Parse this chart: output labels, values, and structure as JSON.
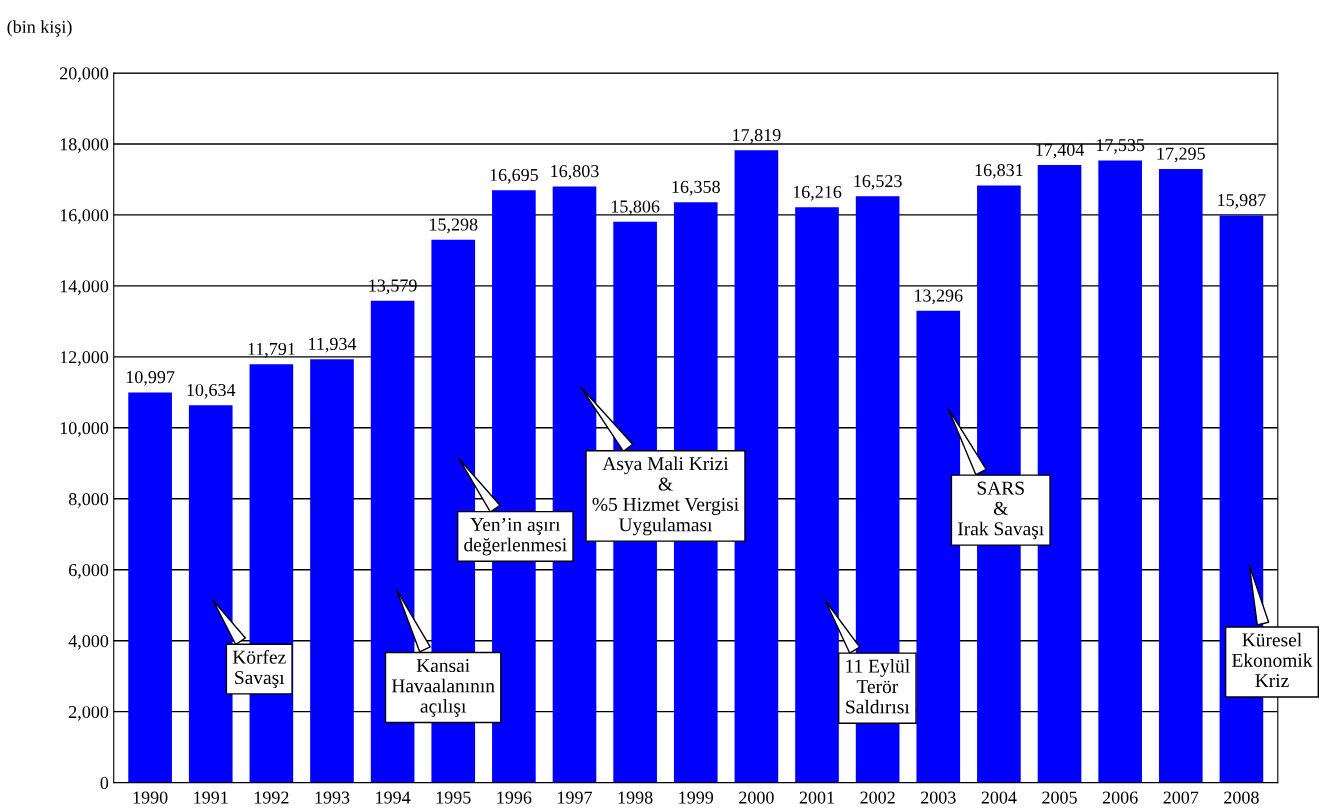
{
  "chart_data": {
    "type": "bar",
    "ylabel": "(bin kişi)",
    "categories": [
      "1990",
      "1991",
      "1992",
      "1993",
      "1994",
      "1995",
      "1996",
      "1997",
      "1998",
      "1999",
      "2000",
      "2001",
      "2002",
      "2003",
      "2004",
      "2005",
      "2006",
      "2007",
      "2008"
    ],
    "values": [
      10997,
      10634,
      11791,
      11934,
      13579,
      15298,
      16695,
      16803,
      15806,
      16358,
      17819,
      16216,
      16523,
      13296,
      16831,
      17404,
      17535,
      17295,
      15987
    ],
    "color": "#0000ff",
    "value_labels": [
      "10,997",
      "10,634",
      "11,791",
      "11,934",
      "13,579",
      "15,298",
      "16,695",
      "16,803",
      "15,806",
      "16,358",
      "17,819",
      "16,216",
      "16,523",
      "13,296",
      "16,831",
      "17,404",
      "17,535",
      "17,295",
      "15,987"
    ],
    "grid": "y",
    "legend": false,
    "ylim": [
      0,
      20000
    ],
    "yticks": [
      {
        "value": 0,
        "label": "0"
      },
      {
        "value": 2000,
        "label": "2,000"
      },
      {
        "value": 4000,
        "label": "4,000"
      },
      {
        "value": 6000,
        "label": "6,000"
      },
      {
        "value": 8000,
        "label": "8,000"
      },
      {
        "value": 10000,
        "label": "10,000"
      },
      {
        "value": 12000,
        "label": "12,000"
      },
      {
        "value": 14000,
        "label": "14,000"
      },
      {
        "value": 16000,
        "label": "16,000"
      },
      {
        "value": 18000,
        "label": "18,000"
      },
      {
        "value": 20000,
        "label": "20,000"
      }
    ],
    "annotations": [
      "Körfez\nSavaşı",
      "Kansai\nHavaalanının\naçılışı",
      "Yen’in aşırı\ndeğerlenmesi",
      "Asya Mali Krizi\n&\n%5 Hizmet Vergisi\nUygulaması",
      "11 Eylül\nTerör\nSaldırısı",
      "SARS\n&\nIrak Savaşı",
      "Küresel\nEkonomik\nKriz"
    ]
  }
}
